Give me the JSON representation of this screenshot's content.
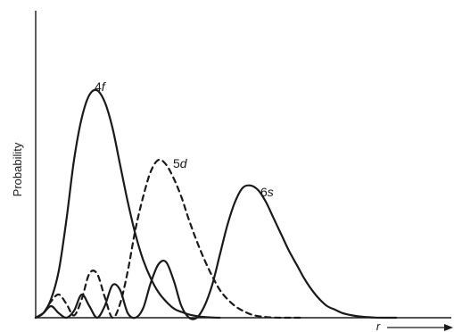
{
  "chart_data": {
    "type": "line",
    "title": "",
    "xlabel": "r",
    "ylabel": "Probability",
    "ylim": [
      0,
      1
    ],
    "xlim": [
      0,
      1
    ],
    "grid": false,
    "legend": "none",
    "series": [
      {
        "name": "4f",
        "label_text_num": "4",
        "label_text_letter": "f",
        "style": "solid",
        "x": [
          0.0,
          0.02,
          0.04,
          0.06,
          0.08,
          0.1,
          0.12,
          0.14,
          0.16,
          0.18,
          0.2,
          0.22,
          0.24,
          0.26,
          0.28,
          0.3,
          0.32,
          0.34,
          0.36,
          0.38,
          0.4,
          0.42,
          0.44,
          0.46,
          0.48
        ],
        "y": [
          0.0,
          0.02,
          0.08,
          0.2,
          0.42,
          0.68,
          0.86,
          0.96,
          0.98,
          0.93,
          0.82,
          0.66,
          0.5,
          0.36,
          0.25,
          0.17,
          0.11,
          0.07,
          0.04,
          0.025,
          0.014,
          0.007,
          0.003,
          0.001,
          0.0
        ]
      },
      {
        "name": "5d",
        "label_text_num": "5",
        "label_text_letter": "d",
        "style": "dashed",
        "x": [
          0.0,
          0.02,
          0.04,
          0.06,
          0.08,
          0.1,
          0.12,
          0.14,
          0.16,
          0.18,
          0.2,
          0.22,
          0.24,
          0.26,
          0.28,
          0.3,
          0.32,
          0.34,
          0.36,
          0.38,
          0.4,
          0.42,
          0.44,
          0.46,
          0.48,
          0.5,
          0.52,
          0.54,
          0.56,
          0.58,
          0.6,
          0.62,
          0.64,
          0.66,
          0.68,
          0.7
        ],
        "y": [
          0.0,
          0.02,
          0.07,
          0.1,
          0.06,
          0.01,
          0.08,
          0.19,
          0.19,
          0.09,
          0.0,
          0.06,
          0.2,
          0.38,
          0.52,
          0.63,
          0.68,
          0.66,
          0.6,
          0.52,
          0.42,
          0.33,
          0.25,
          0.18,
          0.12,
          0.08,
          0.05,
          0.03,
          0.015,
          0.007,
          0.003,
          0.001,
          0.0,
          0.0,
          0.0,
          0.0
        ]
      },
      {
        "name": "6s",
        "label_text_num": "6",
        "label_text_letter": "s",
        "style": "solid",
        "x": [
          0.0,
          0.02,
          0.04,
          0.06,
          0.08,
          0.1,
          0.12,
          0.14,
          0.16,
          0.18,
          0.2,
          0.22,
          0.24,
          0.26,
          0.28,
          0.3,
          0.32,
          0.34,
          0.36,
          0.38,
          0.4,
          0.42,
          0.44,
          0.46,
          0.48,
          0.5,
          0.52,
          0.54,
          0.56,
          0.58,
          0.6,
          0.62,
          0.64,
          0.66,
          0.68,
          0.7,
          0.72,
          0.74,
          0.76,
          0.78,
          0.8,
          0.82,
          0.84,
          0.86,
          0.88,
          0.9,
          0.92,
          0.94
        ],
        "y": [
          0.0,
          0.02,
          0.05,
          0.02,
          0.0,
          0.03,
          0.1,
          0.05,
          0.0,
          0.05,
          0.14,
          0.12,
          0.02,
          0.0,
          0.04,
          0.15,
          0.23,
          0.24,
          0.16,
          0.05,
          0.0,
          0.0,
          0.05,
          0.14,
          0.27,
          0.4,
          0.5,
          0.56,
          0.57,
          0.55,
          0.5,
          0.43,
          0.36,
          0.29,
          0.23,
          0.17,
          0.12,
          0.08,
          0.05,
          0.035,
          0.02,
          0.012,
          0.006,
          0.003,
          0.001,
          0.0,
          0.0,
          0.0
        ]
      }
    ]
  }
}
